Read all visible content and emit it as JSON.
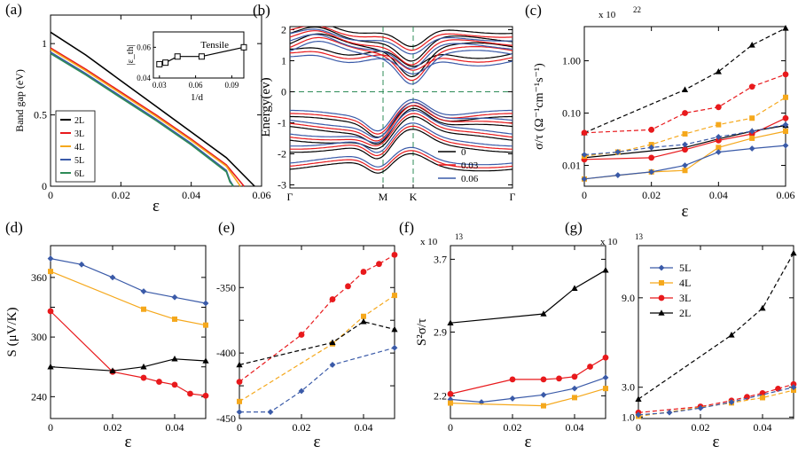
{
  "chart_data": [
    {
      "id": "a",
      "label": "(a)",
      "type": "line",
      "xlabel": "ε",
      "ylabel": "Band gap (eV)",
      "xlim": [
        0,
        0.06
      ],
      "ylim": [
        0,
        1.2
      ],
      "xticks": [
        {
          "v": 0,
          "t": "0"
        },
        {
          "v": 0.02,
          "t": "0.02"
        },
        {
          "v": 0.04,
          "t": "0.04"
        },
        {
          "v": 0.06,
          "t": "0.06"
        }
      ],
      "yticks": [
        {
          "v": 0,
          "t": "0"
        },
        {
          "v": 0.5,
          "t": "0.5"
        },
        {
          "v": 1,
          "t": "1"
        }
      ],
      "legend": "bottom-left",
      "series": [
        {
          "name": "2L",
          "color": "#000000",
          "x": [
            0,
            0.01,
            0.02,
            0.03,
            0.04,
            0.05,
            0.058
          ],
          "y": [
            1.08,
            0.92,
            0.74,
            0.56,
            0.38,
            0.2,
            0.0
          ]
        },
        {
          "name": "3L",
          "color": "#e8191c",
          "x": [
            0,
            0.01,
            0.02,
            0.03,
            0.04,
            0.05,
            0.055
          ],
          "y": [
            0.97,
            0.82,
            0.66,
            0.5,
            0.33,
            0.15,
            0.0
          ]
        },
        {
          "name": "4L",
          "color": "#f5a81c",
          "x": [
            0,
            0.01,
            0.02,
            0.03,
            0.04,
            0.05,
            0.054
          ],
          "y": [
            0.96,
            0.81,
            0.65,
            0.49,
            0.32,
            0.14,
            0.0
          ]
        },
        {
          "name": "5L",
          "color": "#3a5aa8",
          "x": [
            0,
            0.01,
            0.02,
            0.03,
            0.04,
            0.05,
            0.051,
            0.052
          ],
          "y": [
            0.94,
            0.79,
            0.63,
            0.47,
            0.3,
            0.11,
            0.04,
            0.0
          ]
        },
        {
          "name": "6L",
          "color": "#2e8b57",
          "x": [
            0,
            0.01,
            0.02,
            0.03,
            0.04,
            0.05,
            0.051,
            0.052
          ],
          "y": [
            0.93,
            0.78,
            0.62,
            0.46,
            0.29,
            0.1,
            0.03,
            0.0
          ]
        }
      ],
      "inset": {
        "title": "Tensile",
        "xlabel": "1/d",
        "ylabel": "|ε_th|",
        "xlim": [
          0.025,
          0.1
        ],
        "ylim": [
          0.04,
          0.07
        ],
        "xticks": [
          {
            "v": 0.03,
            "t": "0.03"
          },
          {
            "v": 0.06,
            "t": "0.06"
          },
          {
            "v": 0.09,
            "t": "0.09"
          }
        ],
        "yticks": [
          {
            "v": 0.04,
            "t": "0.04"
          },
          {
            "v": 0.06,
            "t": "0.06"
          }
        ],
        "x": [
          0.03,
          0.035,
          0.045,
          0.065,
          0.1
        ],
        "y": [
          0.049,
          0.05,
          0.054,
          0.054,
          0.06
        ]
      }
    },
    {
      "id": "b",
      "label": "(b)",
      "type": "line",
      "ylabel": "Energy(ev)",
      "ylim": [
        -3.1,
        2.1
      ],
      "kpoints": [
        "Γ",
        "M",
        "K",
        "Γ"
      ],
      "yticks": [
        {
          "v": -3,
          "t": "-3"
        },
        {
          "v": -2,
          "t": "-2"
        },
        {
          "v": -1,
          "t": "-1"
        },
        {
          "v": 0,
          "t": "0"
        },
        {
          "v": 1,
          "t": "1"
        },
        {
          "v": 2,
          "t": "2"
        }
      ],
      "legend": "bottom-right",
      "series": [
        {
          "name": "0",
          "color": "#000000",
          "shift": 0
        },
        {
          "name": "0.03",
          "color": "#e8191c",
          "shift": 1
        },
        {
          "name": "0.06",
          "color": "#3a5aa8",
          "shift": 2
        }
      ]
    },
    {
      "id": "c",
      "label": "(c)",
      "type": "line",
      "scale": "log",
      "multiplier": "x 10",
      "multiplier_exp": "22",
      "xlabel": "ε",
      "ylabel": "σ/τ (Ω⁻¹cm⁻¹s⁻¹)",
      "xlim": [
        0,
        0.06
      ],
      "ylim": [
        0.004,
        4.5
      ],
      "xticks": [
        {
          "v": 0,
          "t": "0"
        },
        {
          "v": 0.02,
          "t": "0.02"
        },
        {
          "v": 0.04,
          "t": "0.04"
        },
        {
          "v": 0.06,
          "t": "0.06"
        }
      ],
      "yticks": [
        {
          "v": 0.01,
          "t": "0.01"
        },
        {
          "v": 0.1,
          "t": "0.10"
        },
        {
          "v": 1,
          "t": "1.00"
        }
      ],
      "series": [
        {
          "name": "2L solid",
          "color": "#000000",
          "marker": "triangle",
          "dash": false,
          "x": [
            0,
            0.03,
            0.04,
            0.05,
            0.06
          ],
          "y": [
            0.014,
            0.022,
            0.032,
            0.045,
            0.058
          ]
        },
        {
          "name": "3L solid",
          "color": "#e8191c",
          "marker": "circle",
          "dash": false,
          "x": [
            0,
            0.02,
            0.03,
            0.04,
            0.05,
            0.06
          ],
          "y": [
            0.013,
            0.014,
            0.02,
            0.03,
            0.04,
            0.08
          ]
        },
        {
          "name": "4L solid",
          "color": "#f5a81c",
          "marker": "square",
          "dash": false,
          "x": [
            0,
            0.02,
            0.03,
            0.04,
            0.05,
            0.06
          ],
          "y": [
            0.0055,
            0.0075,
            0.008,
            0.022,
            0.033,
            0.045
          ]
        },
        {
          "name": "5L solid",
          "color": "#3a5aa8",
          "marker": "diamond",
          "dash": false,
          "x": [
            0,
            0.01,
            0.02,
            0.03,
            0.04,
            0.05,
            0.06
          ],
          "y": [
            0.0055,
            0.0065,
            0.0075,
            0.01,
            0.018,
            0.021,
            0.024
          ]
        },
        {
          "name": "2L dashed",
          "color": "#000000",
          "marker": "triangle",
          "dash": true,
          "x": [
            0,
            0.03,
            0.04,
            0.05,
            0.06
          ],
          "y": [
            0.042,
            0.28,
            0.62,
            2.0,
            4.2
          ]
        },
        {
          "name": "3L dashed",
          "color": "#e8191c",
          "marker": "circle",
          "dash": true,
          "x": [
            0,
            0.02,
            0.03,
            0.04,
            0.05,
            0.06
          ],
          "y": [
            0.042,
            0.048,
            0.1,
            0.13,
            0.32,
            0.55
          ]
        },
        {
          "name": "4L dashed",
          "color": "#f5a81c",
          "marker": "square",
          "dash": true,
          "x": [
            0,
            0.01,
            0.02,
            0.03,
            0.04,
            0.05,
            0.06
          ],
          "y": [
            0.015,
            0.018,
            0.025,
            0.04,
            0.06,
            0.08,
            0.2
          ]
        },
        {
          "name": "5L dashed",
          "color": "#3a5aa8",
          "marker": "diamond",
          "dash": true,
          "x": [
            0,
            0.01,
            0.02,
            0.03,
            0.04,
            0.05,
            0.06
          ],
          "y": [
            0.016,
            0.018,
            0.022,
            0.025,
            0.035,
            0.045,
            0.06
          ]
        }
      ]
    },
    {
      "id": "d",
      "label": "(d)",
      "type": "line",
      "xlabel": "ε",
      "ylabel": "S (μV/K)",
      "xlim": [
        0,
        0.05
      ],
      "ylim": [
        218,
        392
      ],
      "xticks": [
        {
          "v": 0,
          "t": "0"
        },
        {
          "v": 0.02,
          "t": "0.02"
        },
        {
          "v": 0.04,
          "t": "0.04"
        }
      ],
      "yticks": [
        {
          "v": 240,
          "t": "240"
        },
        {
          "v": 270,
          "t": ""
        },
        {
          "v": 300,
          "t": "300"
        },
        {
          "v": 330,
          "t": ""
        },
        {
          "v": 360,
          "t": "360"
        }
      ],
      "series": [
        {
          "name": "5L",
          "color": "#3a5aa8",
          "marker": "diamond",
          "dash": false,
          "x": [
            0,
            0.01,
            0.02,
            0.03,
            0.04,
            0.05
          ],
          "y": [
            379,
            373,
            360,
            346,
            340,
            334
          ]
        },
        {
          "name": "4L",
          "color": "#f5a81c",
          "marker": "square",
          "dash": false,
          "x": [
            0,
            0.03,
            0.04,
            0.05
          ],
          "y": [
            366,
            328,
            318,
            312
          ]
        },
        {
          "name": "3L",
          "color": "#e8191c",
          "marker": "circle",
          "dash": false,
          "x": [
            0,
            0.02,
            0.03,
            0.035,
            0.04,
            0.045,
            0.05
          ],
          "y": [
            326,
            265,
            259,
            255,
            252,
            243,
            241
          ]
        },
        {
          "name": "2L",
          "color": "#000000",
          "marker": "triangle",
          "dash": false,
          "x": [
            0,
            0.02,
            0.03,
            0.04,
            0.05
          ],
          "y": [
            270,
            266,
            270,
            278,
            276
          ]
        }
      ]
    },
    {
      "id": "e",
      "label": "(e)",
      "type": "line",
      "xlabel": "ε",
      "ylabel": "",
      "xlim": [
        0,
        0.05
      ],
      "ylim": [
        -450,
        -318
      ],
      "xticks": [
        {
          "v": 0,
          "t": "0"
        },
        {
          "v": 0.02,
          "t": "0.02"
        },
        {
          "v": 0.04,
          "t": "0.04"
        }
      ],
      "yticks": [
        {
          "v": -450,
          "t": "-450"
        },
        {
          "v": -425,
          "t": ""
        },
        {
          "v": -400,
          "t": "-400"
        },
        {
          "v": -375,
          "t": ""
        },
        {
          "v": -350,
          "t": "-350"
        }
      ],
      "series": [
        {
          "name": "3L",
          "color": "#e8191c",
          "marker": "circle",
          "dash": true,
          "x": [
            0,
            0.02,
            0.03,
            0.035,
            0.04,
            0.045,
            0.05
          ],
          "y": [
            -422,
            -386,
            -359,
            -349,
            -338,
            -332,
            -325
          ]
        },
        {
          "name": "4L",
          "color": "#f5a81c",
          "marker": "square",
          "dash": true,
          "x": [
            0,
            0.03,
            0.04,
            0.05
          ],
          "y": [
            -437,
            -393,
            -372,
            -356
          ]
        },
        {
          "name": "5L",
          "color": "#3a5aa8",
          "marker": "diamond",
          "dash": true,
          "x": [
            0,
            0.01,
            0.02,
            0.03,
            0.05
          ],
          "y": [
            -445,
            -445,
            -429,
            -409,
            -396
          ]
        },
        {
          "name": "2L",
          "color": "#000000",
          "marker": "triangle",
          "dash": true,
          "x": [
            0,
            0.03,
            0.04,
            0.05
          ],
          "y": [
            -409,
            -392,
            -376,
            -382
          ]
        }
      ]
    },
    {
      "id": "f",
      "label": "(f)",
      "type": "line",
      "multiplier": "x 10",
      "multiplier_exp": "13",
      "xlabel": "ε",
      "ylabel": "S²σ/τ",
      "xlim": [
        0,
        0.05
      ],
      "ylim": [
        1.95,
        3.85
      ],
      "xticks": [
        {
          "v": 0,
          "t": "0"
        },
        {
          "v": 0.02,
          "t": "0.02"
        },
        {
          "v": 0.04,
          "t": "0.04"
        }
      ],
      "yticks": [
        {
          "v": 2.2,
          "t": "2.2"
        },
        {
          "v": 2.9,
          "t": "2.9"
        },
        {
          "v": 3.7,
          "t": "3.7"
        }
      ],
      "series": [
        {
          "name": "2L",
          "color": "#000000",
          "marker": "triangle",
          "dash": false,
          "x": [
            0,
            0.03,
            0.04,
            0.05
          ],
          "y": [
            3.0,
            3.1,
            3.38,
            3.58
          ]
        },
        {
          "name": "3L",
          "color": "#e8191c",
          "marker": "circle",
          "dash": false,
          "x": [
            0,
            0.02,
            0.03,
            0.035,
            0.04,
            0.045,
            0.05
          ],
          "y": [
            2.22,
            2.38,
            2.38,
            2.39,
            2.41,
            2.52,
            2.62
          ]
        },
        {
          "name": "5L",
          "color": "#3a5aa8",
          "marker": "diamond",
          "dash": false,
          "x": [
            0,
            0.01,
            0.02,
            0.03,
            0.04,
            0.05
          ],
          "y": [
            2.16,
            2.13,
            2.17,
            2.21,
            2.28,
            2.4
          ]
        },
        {
          "name": "4L",
          "color": "#f5a81c",
          "marker": "square",
          "dash": false,
          "x": [
            0,
            0.03,
            0.04,
            0.05
          ],
          "y": [
            2.12,
            2.09,
            2.18,
            2.28
          ]
        }
      ]
    },
    {
      "id": "g",
      "label": "(g)",
      "type": "line",
      "multiplier": "x 10",
      "multiplier_exp": "13",
      "xlabel": "ε",
      "ylabel": "",
      "xlim": [
        0,
        0.05
      ],
      "ylim": [
        0.9,
        12.5
      ],
      "xticks": [
        {
          "v": 0,
          "t": "0"
        },
        {
          "v": 0.02,
          "t": "0.02"
        },
        {
          "v": 0.04,
          "t": "0.04"
        }
      ],
      "yticks": [
        {
          "v": 1.0,
          "t": "1.0"
        },
        {
          "v": 3.0,
          "t": "3.0"
        },
        {
          "v": 9.0,
          "t": "9.0"
        }
      ],
      "legend": "top-left",
      "legend_order": [
        "5L",
        "4L",
        "3L",
        "2L"
      ],
      "series": [
        {
          "name": "2L",
          "color": "#000000",
          "marker": "triangle",
          "dash": true,
          "x": [
            0,
            0.03,
            0.04,
            0.05
          ],
          "y": [
            2.2,
            6.5,
            8.3,
            12.0
          ]
        },
        {
          "name": "3L",
          "color": "#e8191c",
          "marker": "circle",
          "dash": true,
          "x": [
            0,
            0.02,
            0.03,
            0.035,
            0.04,
            0.045,
            0.05
          ],
          "y": [
            1.3,
            1.7,
            2.1,
            2.35,
            2.6,
            2.9,
            3.2
          ]
        },
        {
          "name": "4L",
          "color": "#f5a81c",
          "marker": "square",
          "dash": true,
          "x": [
            0,
            0.03,
            0.04,
            0.05
          ],
          "y": [
            1.05,
            1.95,
            2.3,
            2.8
          ]
        },
        {
          "name": "5L",
          "color": "#3a5aa8",
          "marker": "diamond",
          "dash": true,
          "x": [
            0,
            0.01,
            0.02,
            0.03,
            0.05
          ],
          "y": [
            1.15,
            1.3,
            1.6,
            2.0,
            3.0
          ]
        }
      ]
    }
  ]
}
